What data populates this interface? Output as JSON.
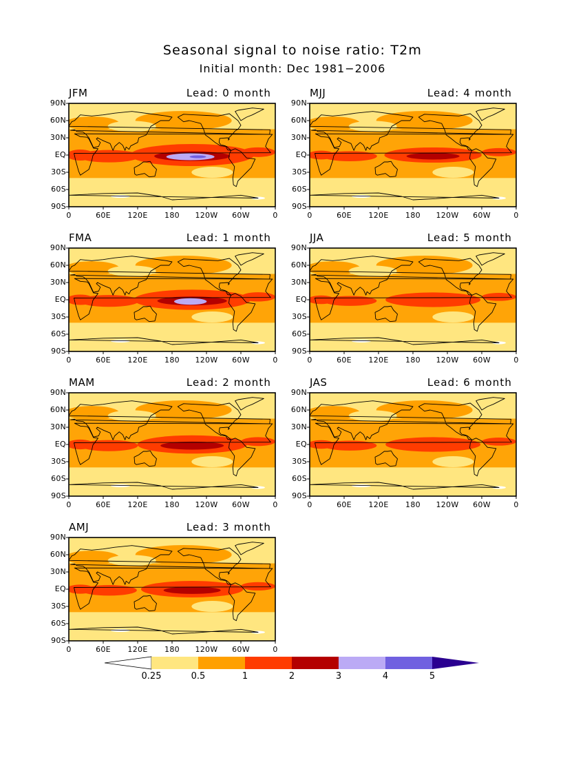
{
  "title": "Seasonal signal to noise ratio: T2m",
  "subtitle": "Initial month: Dec 1981−2006",
  "lat_labels": [
    "90N",
    "60N",
    "30N",
    "EQ",
    "30S",
    "60S",
    "90S"
  ],
  "lon_labels": [
    "0",
    "60E",
    "120E",
    "180",
    "120W",
    "60W",
    "0"
  ],
  "panels": [
    {
      "season": "JFM",
      "lead": "Lead: 0 month",
      "enso": 1.0
    },
    {
      "season": "MJJ",
      "lead": "Lead: 4 month",
      "enso": 0.45
    },
    {
      "season": "FMA",
      "lead": "Lead: 1 month",
      "enso": 0.85
    },
    {
      "season": "JJA",
      "lead": "Lead: 5 month",
      "enso": 0.4
    },
    {
      "season": "MAM",
      "lead": "Lead: 2 month",
      "enso": 0.7
    },
    {
      "season": "JAS",
      "lead": "Lead: 6 month",
      "enso": 0.4
    },
    {
      "season": "AMJ",
      "lead": "Lead: 3 month",
      "enso": 0.55
    }
  ],
  "colorbar": {
    "labels": [
      "0.25",
      "0.5",
      "1",
      "2",
      "3",
      "4",
      "5"
    ],
    "colors": [
      "#ffffff",
      "#ffe680",
      "#ffa000",
      "#ff3c00",
      "#b40000",
      "#bbaaf5",
      "#7060e0",
      "#2a0090"
    ]
  }
}
